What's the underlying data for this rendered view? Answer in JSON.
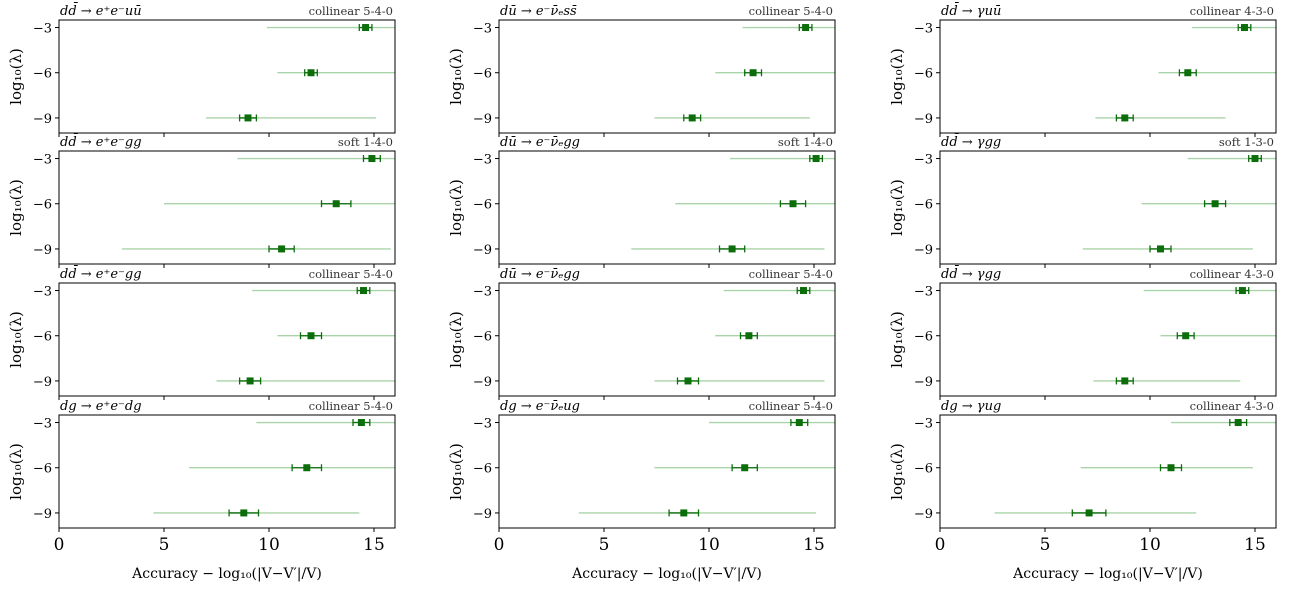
{
  "figure": {
    "xlabel": "Accuracy − log₁₀(|V−V′|/V)",
    "ylabel": "log₁₀(λ)",
    "x_ticks": [
      "0",
      "5",
      "10",
      "15"
    ],
    "y_ticks": [
      "−3",
      "−6",
      "−9"
    ]
  },
  "colors": {
    "marker": "#0b6e0b",
    "range": "#a9d4a9",
    "frame": "#000000"
  },
  "chart_data": [
    {
      "type": "scatter",
      "title": "dd̄ → e⁺e⁻uū",
      "corner": "collinear 5-4-0",
      "xlim": [
        0,
        16
      ],
      "ylim": [
        -10,
        -2.5
      ],
      "points": [
        {
          "y": -3,
          "x": 14.6,
          "err": 0.3,
          "min": 9.9,
          "max": 16.0
        },
        {
          "y": -6,
          "x": 12.0,
          "err": 0.3,
          "min": 10.4,
          "max": 16.0
        },
        {
          "y": -9,
          "x": 9.0,
          "err": 0.4,
          "min": 7.0,
          "max": 15.1
        }
      ]
    },
    {
      "type": "scatter",
      "title": "dū → e⁻ν̄ₑss̄",
      "corner": "collinear 5-4-0",
      "xlim": [
        0,
        16
      ],
      "ylim": [
        -10,
        -2.5
      ],
      "points": [
        {
          "y": -3,
          "x": 14.6,
          "err": 0.3,
          "min": 11.6,
          "max": 16.0
        },
        {
          "y": -6,
          "x": 12.1,
          "err": 0.4,
          "min": 10.3,
          "max": 16.0
        },
        {
          "y": -9,
          "x": 9.2,
          "err": 0.4,
          "min": 7.4,
          "max": 14.8
        }
      ]
    },
    {
      "type": "scatter",
      "title": "dd̄ → γuū",
      "corner": "collinear 4-3-0",
      "xlim": [
        0,
        16
      ],
      "ylim": [
        -10,
        -2.5
      ],
      "points": [
        {
          "y": -3,
          "x": 14.5,
          "err": 0.3,
          "min": 12.0,
          "max": 16.0
        },
        {
          "y": -6,
          "x": 11.8,
          "err": 0.4,
          "min": 10.4,
          "max": 16.0
        },
        {
          "y": -9,
          "x": 8.8,
          "err": 0.4,
          "min": 7.4,
          "max": 13.6
        }
      ]
    },
    {
      "type": "scatter",
      "title": "dd̄ → e⁺e⁻gg",
      "corner": "soft 1-4-0",
      "xlim": [
        0,
        16
      ],
      "ylim": [
        -10,
        -2.5
      ],
      "points": [
        {
          "y": -3,
          "x": 14.9,
          "err": 0.4,
          "min": 8.5,
          "max": 16.0
        },
        {
          "y": -6,
          "x": 13.2,
          "err": 0.7,
          "min": 5.0,
          "max": 16.0
        },
        {
          "y": -9,
          "x": 10.6,
          "err": 0.6,
          "min": 3.0,
          "max": 15.8
        }
      ]
    },
    {
      "type": "scatter",
      "title": "dū → e⁻ν̄ₑgg",
      "corner": "soft 1-4-0",
      "xlim": [
        0,
        16
      ],
      "ylim": [
        -10,
        -2.5
      ],
      "points": [
        {
          "y": -3,
          "x": 15.1,
          "err": 0.3,
          "min": 11.0,
          "max": 16.0
        },
        {
          "y": -6,
          "x": 14.0,
          "err": 0.6,
          "min": 8.4,
          "max": 16.0
        },
        {
          "y": -9,
          "x": 11.1,
          "err": 0.6,
          "min": 6.3,
          "max": 15.5
        }
      ]
    },
    {
      "type": "scatter",
      "title": "dd̄ → γgg",
      "corner": "soft 1-3-0",
      "xlim": [
        0,
        16
      ],
      "ylim": [
        -10,
        -2.5
      ],
      "points": [
        {
          "y": -3,
          "x": 15.0,
          "err": 0.3,
          "min": 11.8,
          "max": 16.0
        },
        {
          "y": -6,
          "x": 13.1,
          "err": 0.5,
          "min": 9.6,
          "max": 16.0
        },
        {
          "y": -9,
          "x": 10.5,
          "err": 0.5,
          "min": 6.8,
          "max": 14.9
        }
      ]
    },
    {
      "type": "scatter",
      "title": "dd̄ → e⁺e⁻gg",
      "corner": "collinear 5-4-0",
      "xlim": [
        0,
        16
      ],
      "ylim": [
        -10,
        -2.5
      ],
      "points": [
        {
          "y": -3,
          "x": 14.5,
          "err": 0.3,
          "min": 9.2,
          "max": 16.0
        },
        {
          "y": -6,
          "x": 12.0,
          "err": 0.5,
          "min": 10.4,
          "max": 16.0
        },
        {
          "y": -9,
          "x": 9.1,
          "err": 0.5,
          "min": 7.5,
          "max": 16.0
        }
      ]
    },
    {
      "type": "scatter",
      "title": "dū → e⁻ν̄ₑgg",
      "corner": "collinear 5-4-0",
      "xlim": [
        0,
        16
      ],
      "ylim": [
        -10,
        -2.5
      ],
      "points": [
        {
          "y": -3,
          "x": 14.5,
          "err": 0.3,
          "min": 10.7,
          "max": 16.0
        },
        {
          "y": -6,
          "x": 11.9,
          "err": 0.4,
          "min": 10.3,
          "max": 16.0
        },
        {
          "y": -9,
          "x": 9.0,
          "err": 0.5,
          "min": 7.4,
          "max": 15.5
        }
      ]
    },
    {
      "type": "scatter",
      "title": "dd̄ → γgg",
      "corner": "collinear 4-3-0",
      "xlim": [
        0,
        16
      ],
      "ylim": [
        -10,
        -2.5
      ],
      "points": [
        {
          "y": -3,
          "x": 14.4,
          "err": 0.3,
          "min": 9.7,
          "max": 16.0
        },
        {
          "y": -6,
          "x": 11.7,
          "err": 0.4,
          "min": 10.5,
          "max": 16.0
        },
        {
          "y": -9,
          "x": 8.8,
          "err": 0.4,
          "min": 7.3,
          "max": 14.3
        }
      ]
    },
    {
      "type": "scatter",
      "title": "dg → e⁺e⁻dg",
      "corner": "collinear 5-4-0",
      "xlim": [
        0,
        16
      ],
      "ylim": [
        -10,
        -2.5
      ],
      "points": [
        {
          "y": -3,
          "x": 14.4,
          "err": 0.4,
          "min": 9.4,
          "max": 16.0
        },
        {
          "y": -6,
          "x": 11.8,
          "err": 0.7,
          "min": 6.2,
          "max": 16.0
        },
        {
          "y": -9,
          "x": 8.8,
          "err": 0.7,
          "min": 4.5,
          "max": 14.3
        }
      ]
    },
    {
      "type": "scatter",
      "title": "dg → e⁻ν̄ₑug",
      "corner": "collinear 5-4-0",
      "xlim": [
        0,
        16
      ],
      "ylim": [
        -10,
        -2.5
      ],
      "points": [
        {
          "y": -3,
          "x": 14.3,
          "err": 0.4,
          "min": 10.0,
          "max": 16.0
        },
        {
          "y": -6,
          "x": 11.7,
          "err": 0.6,
          "min": 7.4,
          "max": 16.0
        },
        {
          "y": -9,
          "x": 8.8,
          "err": 0.7,
          "min": 3.8,
          "max": 15.1
        }
      ]
    },
    {
      "type": "scatter",
      "title": "dg → γug",
      "corner": "collinear 4-3-0",
      "xlim": [
        0,
        16
      ],
      "ylim": [
        -10,
        -2.5
      ],
      "points": [
        {
          "y": -3,
          "x": 14.2,
          "err": 0.4,
          "min": 11.0,
          "max": 16.0
        },
        {
          "y": -6,
          "x": 11.0,
          "err": 0.5,
          "min": 6.7,
          "max": 14.9
        },
        {
          "y": -9,
          "x": 7.1,
          "err": 0.8,
          "min": 2.6,
          "max": 12.2
        }
      ]
    }
  ]
}
